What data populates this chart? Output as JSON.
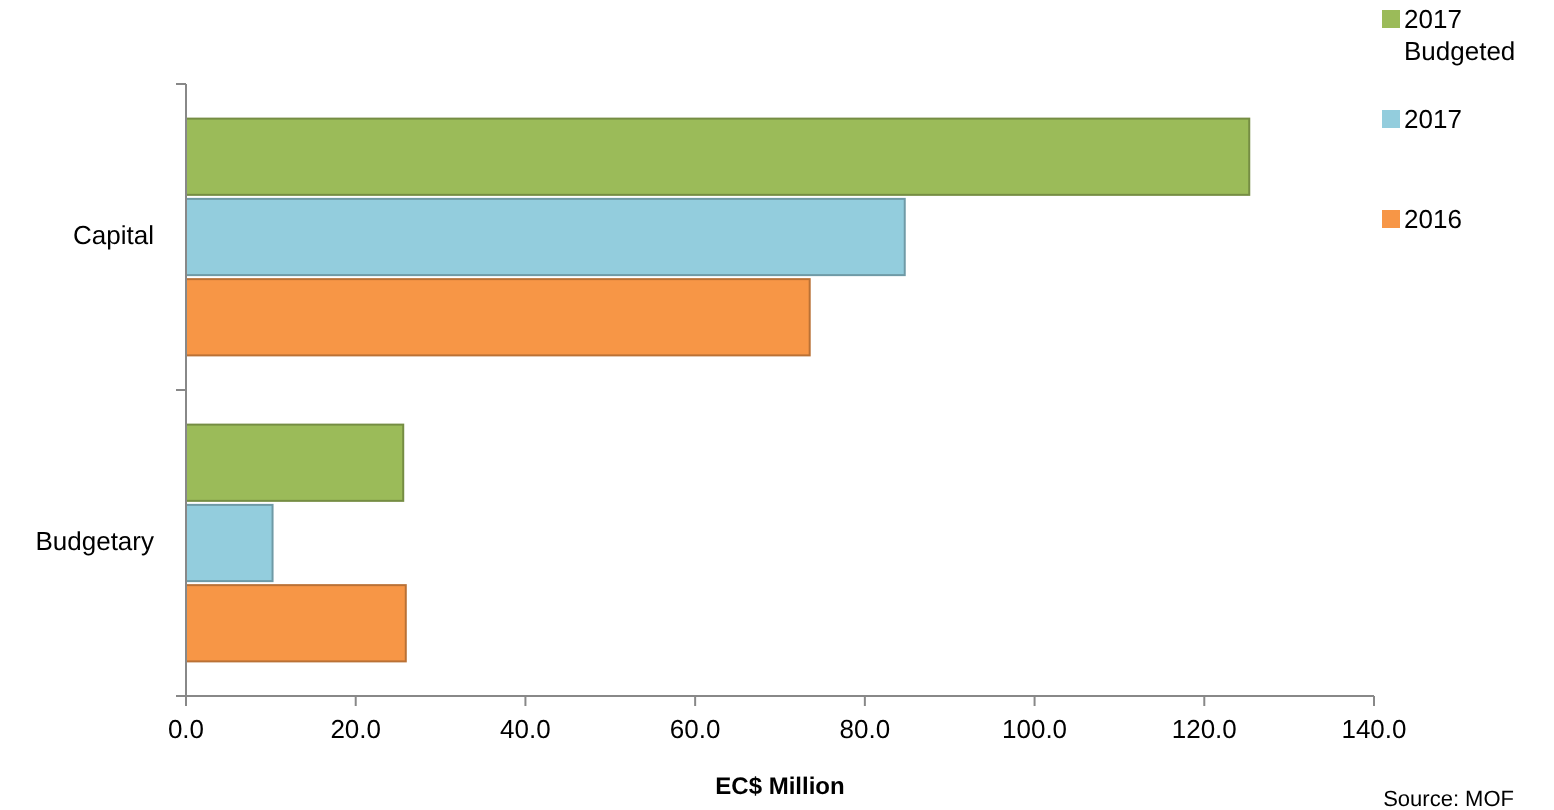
{
  "chart_data": {
    "type": "bar",
    "orientation": "horizontal",
    "categories": [
      "Capital",
      "Budgetary"
    ],
    "series": [
      {
        "name": "2017 Budgeted",
        "color": "#9bbb59",
        "values": [
          125.3,
          25.6
        ]
      },
      {
        "name": "2017",
        "color": "#93cddd",
        "values": [
          84.7,
          10.2
        ]
      },
      {
        "name": "2016",
        "color": "#f79646",
        "values": [
          73.5,
          25.9
        ]
      }
    ],
    "xlim": [
      0,
      140
    ],
    "xticks": [
      {
        "value": 0,
        "label": "0.0"
      },
      {
        "value": 20,
        "label": "20.0"
      },
      {
        "value": 40,
        "label": "40.0"
      },
      {
        "value": 60,
        "label": "60.0"
      },
      {
        "value": 80,
        "label": "80.0"
      },
      {
        "value": 100,
        "label": "100.0"
      },
      {
        "value": 120,
        "label": "120.0"
      },
      {
        "value": 140,
        "label": "140.0"
      }
    ],
    "xlabel": "EC$ Million",
    "legend": "top right",
    "grid": false,
    "annotations": [
      "Source: MOF"
    ]
  }
}
